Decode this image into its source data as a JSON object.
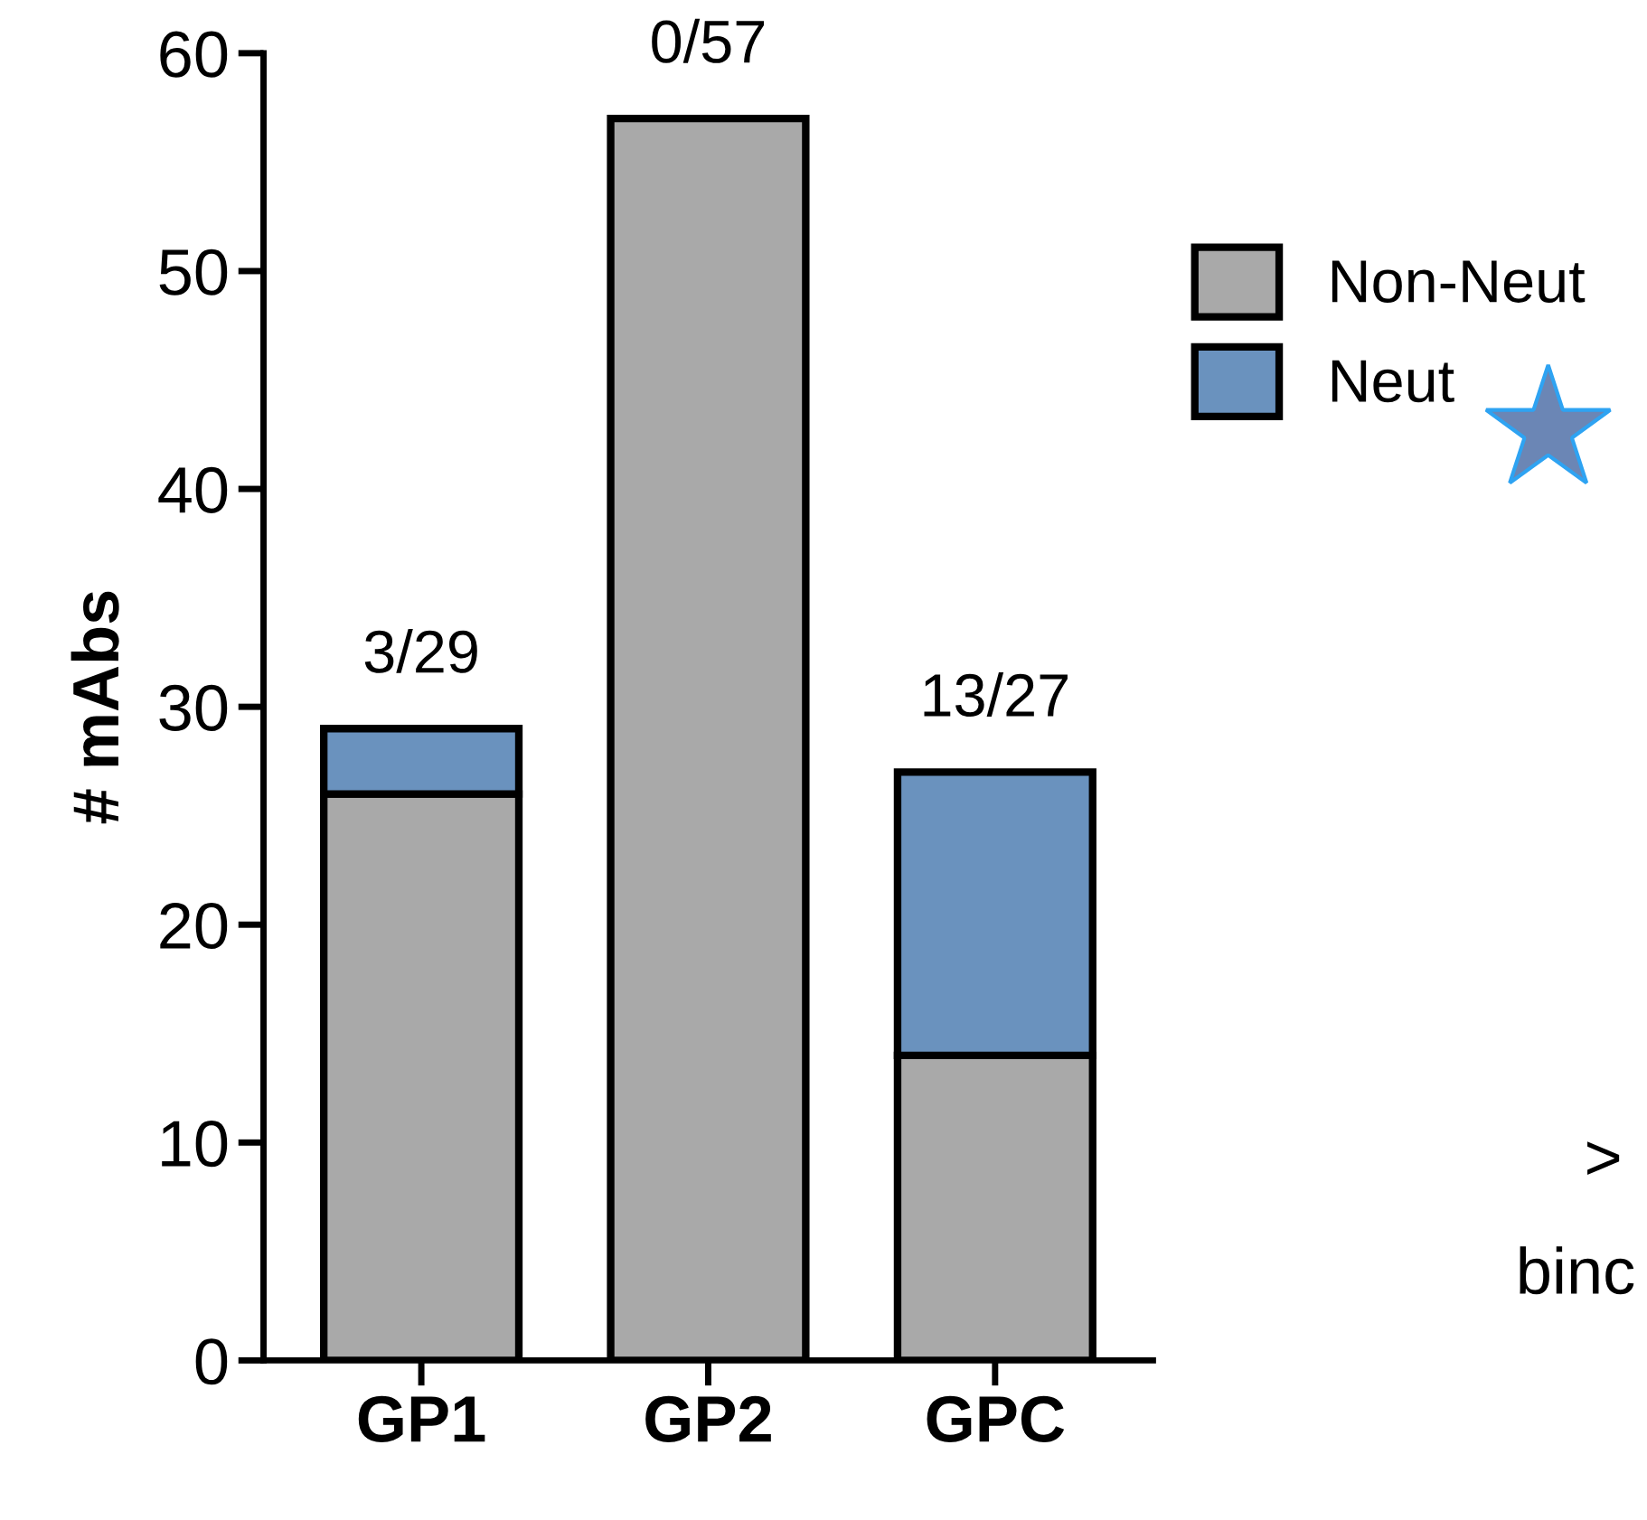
{
  "chart_data": {
    "type": "bar",
    "ylabel": "# mAbs",
    "categories": [
      "GP1",
      "GP2",
      "GPC"
    ],
    "stacked": true,
    "series": [
      {
        "name": "Non-Neut",
        "color": "#a9a9a9",
        "values": [
          26,
          57,
          14
        ]
      },
      {
        "name": "Neut",
        "color": "#6a92be",
        "values": [
          3,
          0,
          13
        ]
      }
    ],
    "totals": [
      "3/29",
      "0/57",
      "13/27"
    ],
    "ylim": [
      0,
      60
    ],
    "yticks": [
      0,
      10,
      20,
      30,
      40,
      50,
      60
    ],
    "grid": false,
    "legend": "right",
    "annotations": [
      ">",
      "binc"
    ]
  }
}
